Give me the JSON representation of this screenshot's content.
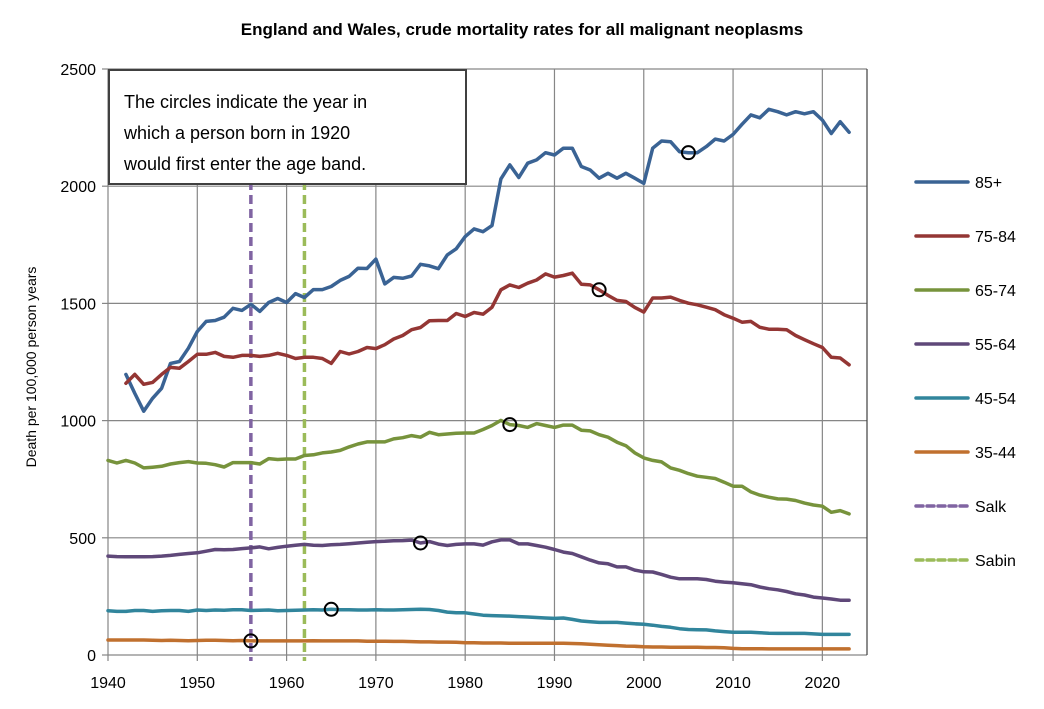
{
  "chart_data": {
    "type": "line",
    "title": "England and Wales, crude mortality rates for all malignant neoplasms",
    "xlabel": "",
    "ylabel": "Death per 100,000 person years",
    "xlim": [
      1940,
      2025
    ],
    "ylim": [
      0,
      2500
    ],
    "xticks": [
      1940,
      1950,
      1960,
      1970,
      1980,
      1990,
      2000,
      2010,
      2020
    ],
    "yticks": [
      0,
      500,
      1000,
      1500,
      2000,
      2500
    ],
    "grid": true,
    "legend_position": "right",
    "annotation": {
      "lines": [
        "The circles indicate the year in",
        "which a person born in 1920",
        "would first enter the age band."
      ]
    },
    "series": [
      {
        "name": "85+",
        "color": "#3a6394",
        "start_year": 1942,
        "values": [
          1197,
          1116,
          1040,
          1095,
          1138,
          1244,
          1252,
          1309,
          1380,
          1423,
          1427,
          1441,
          1479,
          1470,
          1496,
          1466,
          1504,
          1521,
          1504,
          1542,
          1525,
          1559,
          1559,
          1572,
          1598,
          1615,
          1650,
          1649,
          1689,
          1583,
          1611,
          1607,
          1617,
          1667,
          1660,
          1648,
          1707,
          1733,
          1785,
          1818,
          1806,
          1832,
          2031,
          2091,
          2037,
          2098,
          2112,
          2143,
          2133,
          2162,
          2162,
          2084,
          2069,
          2034,
          2055,
          2034,
          2055,
          2034,
          2012,
          2162,
          2193,
          2190,
          2147,
          2143,
          2143,
          2169,
          2201,
          2193,
          2221,
          2264,
          2304,
          2292,
          2328,
          2318,
          2304,
          2318,
          2309,
          2318,
          2282,
          2225,
          2275,
          2230
        ],
        "marker_year": 2005
      },
      {
        "name": "75-84",
        "color": "#943634",
        "start_year": 1942,
        "values": [
          1159,
          1197,
          1155,
          1163,
          1197,
          1227,
          1223,
          1252,
          1283,
          1283,
          1291,
          1274,
          1270,
          1278,
          1278,
          1274,
          1278,
          1287,
          1278,
          1265,
          1270,
          1270,
          1265,
          1244,
          1295,
          1284,
          1295,
          1312,
          1307,
          1324,
          1348,
          1363,
          1388,
          1397,
          1426,
          1427,
          1427,
          1457,
          1444,
          1461,
          1454,
          1484,
          1558,
          1579,
          1568,
          1586,
          1600,
          1626,
          1612,
          1619,
          1629,
          1582,
          1579,
          1558,
          1534,
          1513,
          1508,
          1483,
          1463,
          1523,
          1523,
          1527,
          1513,
          1501,
          1494,
          1484,
          1473,
          1452,
          1437,
          1420,
          1423,
          1398,
          1390,
          1390,
          1388,
          1363,
          1345,
          1328,
          1312,
          1270,
          1267,
          1238
        ],
        "marker_year": 1995
      },
      {
        "name": "65-74",
        "color": "#77933c",
        "start_year": 1940,
        "values": [
          830,
          819,
          830,
          819,
          798,
          801,
          805,
          815,
          821,
          825,
          819,
          818,
          812,
          802,
          821,
          821,
          821,
          815,
          838,
          834,
          836,
          836,
          851,
          854,
          862,
          866,
          873,
          888,
          900,
          909,
          909,
          909,
          922,
          927,
          936,
          929,
          950,
          940,
          943,
          946,
          947,
          947,
          962,
          979,
          1001,
          983,
          979,
          971,
          987,
          979,
          971,
          981,
          981,
          959,
          956,
          940,
          929,
          908,
          893,
          862,
          841,
          830,
          824,
          798,
          788,
          774,
          763,
          758,
          753,
          737,
          720,
          720,
          696,
          682,
          673,
          666,
          665,
          659,
          648,
          640,
          635,
          609,
          616,
          602
        ],
        "marker_year": 1985
      },
      {
        "name": "55-64",
        "color": "#5f4879",
        "start_year": 1940,
        "values": [
          422,
          420,
          419,
          419,
          419,
          420,
          422,
          425,
          429,
          433,
          436,
          443,
          450,
          449,
          450,
          454,
          457,
          461,
          453,
          459,
          464,
          468,
          472,
          468,
          467,
          470,
          472,
          475,
          478,
          481,
          484,
          485,
          487,
          488,
          490,
          478,
          484,
          473,
          467,
          472,
          474,
          474,
          469,
          483,
          491,
          491,
          474,
          474,
          467,
          460,
          450,
          439,
          433,
          419,
          405,
          393,
          389,
          376,
          376,
          362,
          355,
          354,
          344,
          332,
          325,
          325,
          325,
          322,
          315,
          311,
          308,
          304,
          300,
          290,
          283,
          278,
          271,
          261,
          256,
          247,
          243,
          239,
          234,
          234
        ],
        "marker_year": 1975
      },
      {
        "name": "45-54",
        "color": "#31859c",
        "start_year": 1940,
        "values": [
          189,
          186,
          186,
          190,
          190,
          186,
          189,
          190,
          190,
          186,
          192,
          190,
          192,
          191,
          193,
          193,
          190,
          191,
          192,
          189,
          190,
          191,
          192,
          193,
          192,
          195,
          193,
          193,
          192,
          192,
          193,
          192,
          192,
          193,
          194,
          195,
          194,
          190,
          183,
          180,
          180,
          175,
          170,
          168,
          167,
          166,
          164,
          162,
          160,
          158,
          156,
          158,
          152,
          145,
          142,
          139,
          139,
          139,
          136,
          133,
          131,
          127,
          122,
          118,
          112,
          109,
          108,
          107,
          103,
          100,
          97,
          97,
          97,
          95,
          93,
          92,
          92,
          92,
          92,
          90,
          88,
          88,
          88,
          88
        ],
        "marker_year": 1965
      },
      {
        "name": "35-44",
        "color": "#c0702f",
        "start_year": 1940,
        "values": [
          64,
          64,
          64,
          64,
          64,
          63,
          62,
          63,
          62,
          61,
          62,
          63,
          63,
          62,
          61,
          62,
          60,
          60,
          60,
          60,
          60,
          60,
          60,
          61,
          60,
          60,
          60,
          60,
          60,
          59,
          59,
          59,
          58,
          58,
          57,
          56,
          56,
          55,
          55,
          54,
          52,
          52,
          51,
          51,
          51,
          50,
          50,
          50,
          50,
          50,
          50,
          50,
          49,
          48,
          46,
          44,
          42,
          40,
          38,
          37,
          35,
          34,
          34,
          33,
          33,
          33,
          33,
          32,
          32,
          31,
          28,
          27,
          27,
          27,
          26,
          26,
          26,
          26,
          26,
          26,
          26,
          26,
          26,
          26
        ],
        "marker_year": 1956
      }
    ],
    "vertical_markers": [
      {
        "name": "Salk",
        "year": 1956,
        "color": "#8064a2",
        "style": "dashed"
      },
      {
        "name": "Sabin",
        "year": 1962,
        "color": "#9bbb59",
        "style": "dashed"
      }
    ],
    "legend": [
      "85+",
      "75-84",
      "65-74",
      "55-64",
      "45-54",
      "35-44",
      "Salk",
      "Sabin"
    ]
  }
}
